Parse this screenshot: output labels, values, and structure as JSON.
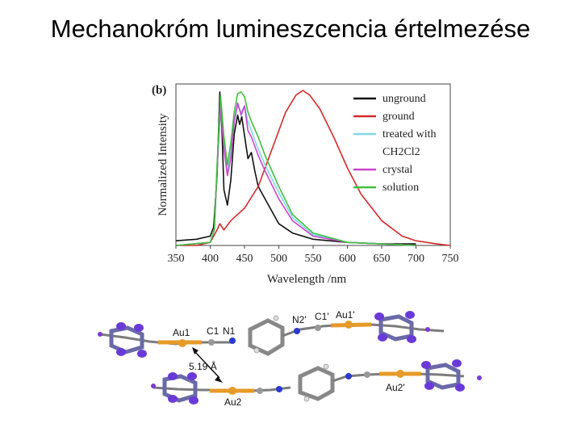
{
  "slide": {
    "title": "Mechanokróm lumineszcencia értelmezése"
  },
  "chart_data": {
    "type": "line",
    "panel_label": "(b)",
    "xlabel": "Wavelength /nm",
    "ylabel": "Normalized Intensity",
    "xlim": [
      350,
      750
    ],
    "ylim": [
      0,
      1
    ],
    "xticks": [
      "350",
      "400",
      "450",
      "500",
      "550",
      "600",
      "650",
      "700",
      "750"
    ],
    "grid": false,
    "legend_position": "top-right",
    "series": [
      {
        "name": "unground",
        "color": "#111111",
        "x": [
          350,
          380,
          400,
          405,
          410,
          414,
          417,
          420,
          425,
          430,
          435,
          440,
          443,
          446,
          450,
          455,
          460,
          465,
          470,
          480,
          490,
          500,
          520,
          550,
          600,
          650,
          700
        ],
        "y": [
          0.03,
          0.04,
          0.06,
          0.12,
          0.45,
          0.99,
          0.75,
          0.36,
          0.26,
          0.42,
          0.72,
          0.84,
          0.78,
          0.83,
          0.71,
          0.56,
          0.6,
          0.48,
          0.38,
          0.3,
          0.22,
          0.14,
          0.08,
          0.04,
          0.02,
          0.01,
          0.01
        ]
      },
      {
        "name": "ground",
        "color": "#d42a2a",
        "x": [
          350,
          380,
          400,
          410,
          414,
          420,
          430,
          450,
          470,
          490,
          510,
          525,
          535,
          545,
          560,
          580,
          600,
          620,
          650,
          680,
          700,
          730,
          750
        ],
        "y": [
          0.0,
          0.0,
          0.02,
          0.1,
          0.14,
          0.1,
          0.16,
          0.24,
          0.38,
          0.62,
          0.86,
          0.97,
          1.0,
          0.97,
          0.88,
          0.7,
          0.5,
          0.33,
          0.16,
          0.06,
          0.03,
          0.01,
          0.0
        ]
      },
      {
        "name": "treated with CH2Cl2",
        "color": "#7fd8e6",
        "x": [
          350,
          400,
          406,
          410,
          415,
          420,
          425,
          430,
          435,
          440,
          445,
          450,
          455,
          460,
          470,
          480,
          500,
          520,
          550,
          600,
          650,
          700
        ],
        "y": [
          0.0,
          0.02,
          0.1,
          0.5,
          0.95,
          0.66,
          0.48,
          0.6,
          0.8,
          0.9,
          0.86,
          0.9,
          0.8,
          0.74,
          0.62,
          0.52,
          0.34,
          0.18,
          0.07,
          0.02,
          0.01,
          0.0
        ]
      },
      {
        "name": "crystal",
        "color": "#cc44cc",
        "x": [
          350,
          400,
          406,
          410,
          415,
          420,
          425,
          430,
          435,
          440,
          445,
          450,
          455,
          460,
          470,
          480,
          500,
          520,
          550,
          600,
          650,
          700
        ],
        "y": [
          0.0,
          0.02,
          0.1,
          0.48,
          0.9,
          0.62,
          0.45,
          0.56,
          0.8,
          0.92,
          0.84,
          0.9,
          0.74,
          0.7,
          0.58,
          0.48,
          0.3,
          0.16,
          0.06,
          0.02,
          0.01,
          0.0
        ]
      },
      {
        "name": "solution",
        "color": "#3fbf3f",
        "x": [
          350,
          400,
          406,
          410,
          415,
          420,
          425,
          430,
          435,
          440,
          445,
          450,
          455,
          460,
          470,
          480,
          500,
          520,
          550,
          600,
          650,
          700
        ],
        "y": [
          0.0,
          0.02,
          0.1,
          0.52,
          0.97,
          0.7,
          0.52,
          0.66,
          0.86,
          0.98,
          0.99,
          0.96,
          0.86,
          0.8,
          0.7,
          0.58,
          0.38,
          0.2,
          0.08,
          0.02,
          0.01,
          0.0
        ]
      }
    ]
  },
  "structure": {
    "labels": {
      "au1": "Au1",
      "c1": "C1",
      "n1": "N1",
      "n2p": "N2'",
      "c1p": "C1'",
      "au1p": "Au1'",
      "distance": "5.19 Å",
      "au2": "Au2",
      "au2p": "Au2'"
    },
    "colors": {
      "gold": "#e69a28",
      "carbon": "#9a9a9a",
      "nitrogen": "#2a3ad0",
      "fluorine": "#7a3ad8",
      "hydrogen": "#dddddd"
    }
  }
}
